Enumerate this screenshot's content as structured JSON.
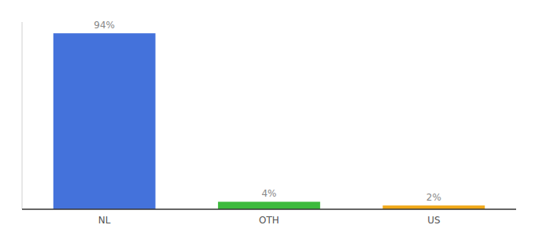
{
  "chart_data": {
    "type": "bar",
    "categories": [
      "NL",
      "OTH",
      "US"
    ],
    "values": [
      94,
      4,
      2
    ],
    "value_labels": [
      "94%",
      "4%",
      "2%"
    ],
    "colors": [
      "#4472db",
      "#3dba3d",
      "#f0a818"
    ],
    "ylim": [
      0,
      100
    ],
    "data_labels": true,
    "tick_labels": "x"
  }
}
